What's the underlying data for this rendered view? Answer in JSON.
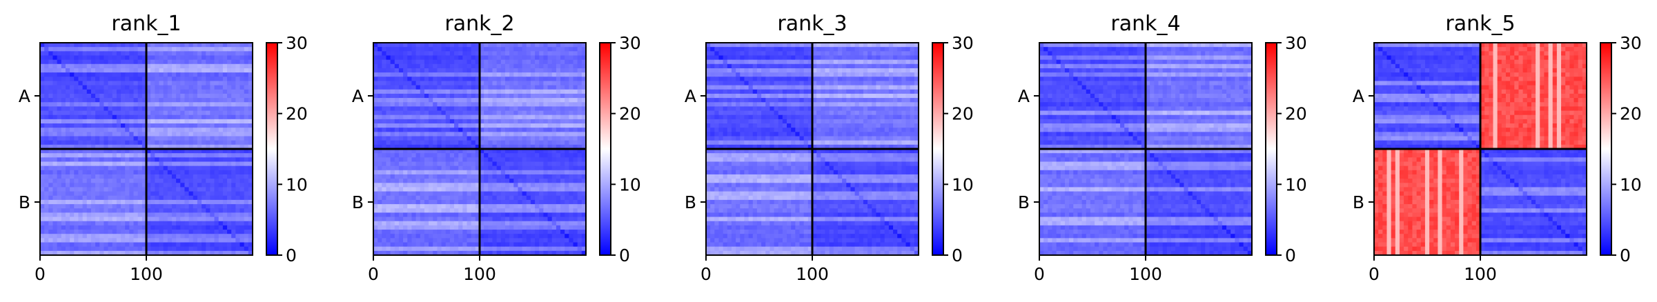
{
  "chart_data": {
    "type": "heatmap",
    "description_scale": "PAE heatmaps for 5 ranked models, two chains A and B, residues 0-199",
    "colormap": "bwr",
    "colors": {
      "low": "#0000ff",
      "mid": "#ffffff",
      "high": "#ff0000"
    },
    "color_range": [
      0,
      30
    ],
    "colorbar_ticks": [
      "0",
      "10",
      "20",
      "30"
    ],
    "x_ticks": [
      "0",
      "100"
    ],
    "x_tick_values": [
      0,
      100
    ],
    "x_range": [
      0,
      199
    ],
    "chain_labels": [
      "A",
      "B"
    ],
    "chain_boundary": 100,
    "panels": [
      {
        "title": "rank_1",
        "intra_chain_level": 3,
        "inter_chain_level": 5
      },
      {
        "title": "rank_2",
        "intra_chain_level": 3,
        "inter_chain_level": 5
      },
      {
        "title": "rank_3",
        "intra_chain_level": 3,
        "inter_chain_level": 5
      },
      {
        "title": "rank_4",
        "intra_chain_level": 3,
        "inter_chain_level": 5
      },
      {
        "title": "rank_5",
        "intra_chain_level": 3,
        "inter_chain_level": 27
      }
    ]
  }
}
